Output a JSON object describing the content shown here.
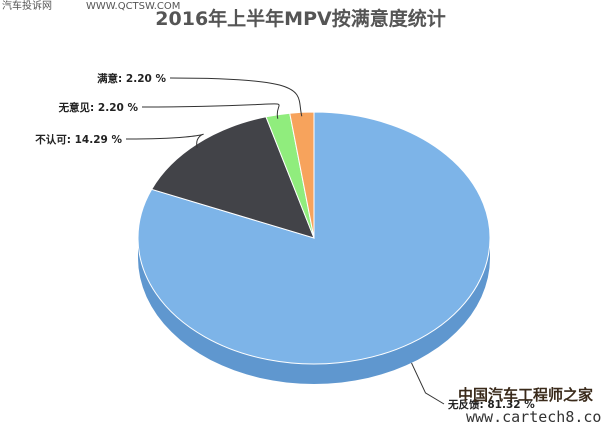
{
  "header": {
    "site_name": "汽车投诉网",
    "site_url": "WWW.QCTSW.COM"
  },
  "chart_data": {
    "type": "pie",
    "title": "2016年上半年MPV按满意度统计",
    "series": [
      {
        "name": "无反馈",
        "label": "无反馈: 81.32 %",
        "value": 81.32,
        "color": "#7db4e8",
        "side": "#5f97cf"
      },
      {
        "name": "不认可",
        "label": "不认可: 14.29 %",
        "value": 14.29,
        "color": "#424348",
        "side": "#2f3034"
      },
      {
        "name": "无意见",
        "label": "无意见: 2.20 %",
        "value": 2.2,
        "color": "#90ed7d",
        "side": "#6fc45e"
      },
      {
        "name": "满意",
        "label": "满意: 2.20 %",
        "value": 2.2,
        "color": "#f7a35c",
        "side": "#d1833f"
      }
    ]
  },
  "watermark": {
    "cn": "中国汽车工程师之家",
    "url": "www.cartech8.com"
  }
}
